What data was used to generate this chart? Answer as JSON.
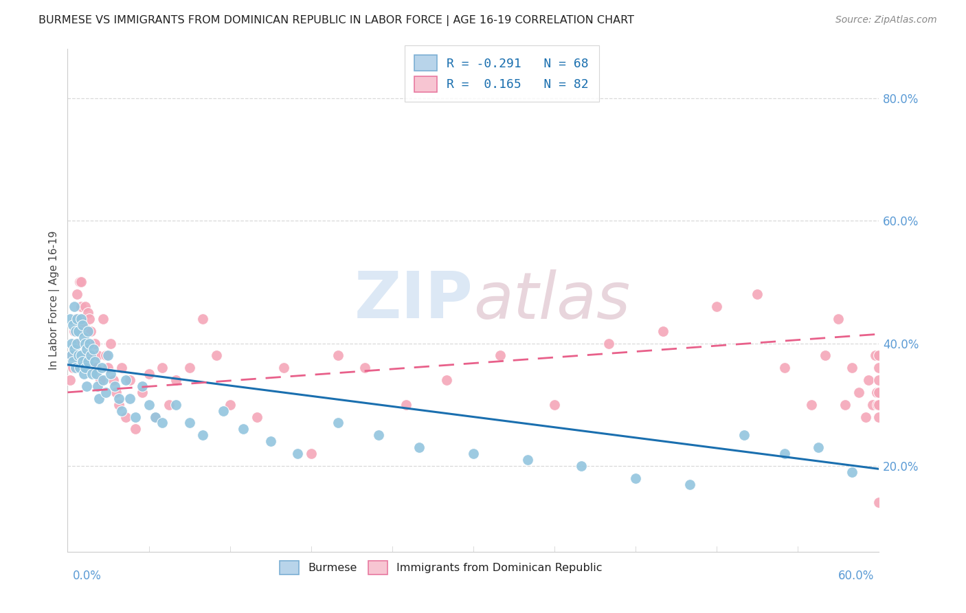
{
  "title": "BURMESE VS IMMIGRANTS FROM DOMINICAN REPUBLIC IN LABOR FORCE | AGE 16-19 CORRELATION CHART",
  "source": "Source: ZipAtlas.com",
  "ylabel": "In Labor Force | Age 16-19",
  "right_yticks": [
    "80.0%",
    "60.0%",
    "40.0%",
    "20.0%"
  ],
  "right_ytick_vals": [
    0.8,
    0.6,
    0.4,
    0.2
  ],
  "blue_color": "#92c5de",
  "pink_color": "#f4a6b8",
  "blue_line_color": "#1a6faf",
  "pink_line_color": "#e8608a",
  "background_color": "#ffffff",
  "grid_color": "#d9d9d9",
  "x_range": [
    0.0,
    0.6
  ],
  "y_range": [
    0.06,
    0.88
  ],
  "blue_scatter_x": [
    0.002,
    0.003,
    0.003,
    0.004,
    0.004,
    0.005,
    0.005,
    0.006,
    0.006,
    0.007,
    0.007,
    0.008,
    0.008,
    0.009,
    0.01,
    0.01,
    0.011,
    0.011,
    0.012,
    0.012,
    0.013,
    0.013,
    0.014,
    0.014,
    0.015,
    0.015,
    0.016,
    0.017,
    0.018,
    0.019,
    0.02,
    0.021,
    0.022,
    0.023,
    0.025,
    0.026,
    0.028,
    0.03,
    0.032,
    0.035,
    0.038,
    0.04,
    0.043,
    0.046,
    0.05,
    0.055,
    0.06,
    0.065,
    0.07,
    0.08,
    0.09,
    0.1,
    0.115,
    0.13,
    0.15,
    0.17,
    0.2,
    0.23,
    0.26,
    0.3,
    0.34,
    0.38,
    0.42,
    0.46,
    0.5,
    0.53,
    0.555,
    0.58
  ],
  "blue_scatter_y": [
    0.44,
    0.4,
    0.38,
    0.43,
    0.37,
    0.46,
    0.39,
    0.42,
    0.36,
    0.44,
    0.4,
    0.38,
    0.42,
    0.36,
    0.44,
    0.38,
    0.43,
    0.37,
    0.41,
    0.35,
    0.4,
    0.36,
    0.39,
    0.33,
    0.42,
    0.37,
    0.4,
    0.38,
    0.35,
    0.39,
    0.37,
    0.35,
    0.33,
    0.31,
    0.36,
    0.34,
    0.32,
    0.38,
    0.35,
    0.33,
    0.31,
    0.29,
    0.34,
    0.31,
    0.28,
    0.33,
    0.3,
    0.28,
    0.27,
    0.3,
    0.27,
    0.25,
    0.29,
    0.26,
    0.24,
    0.22,
    0.27,
    0.25,
    0.23,
    0.22,
    0.21,
    0.2,
    0.18,
    0.17,
    0.25,
    0.22,
    0.23,
    0.19
  ],
  "pink_scatter_x": [
    0.002,
    0.003,
    0.004,
    0.005,
    0.005,
    0.006,
    0.006,
    0.007,
    0.008,
    0.008,
    0.009,
    0.01,
    0.01,
    0.011,
    0.012,
    0.012,
    0.013,
    0.014,
    0.015,
    0.015,
    0.016,
    0.017,
    0.018,
    0.019,
    0.02,
    0.021,
    0.022,
    0.024,
    0.026,
    0.028,
    0.03,
    0.032,
    0.034,
    0.036,
    0.038,
    0.04,
    0.043,
    0.046,
    0.05,
    0.055,
    0.06,
    0.065,
    0.07,
    0.075,
    0.08,
    0.09,
    0.1,
    0.11,
    0.12,
    0.14,
    0.16,
    0.18,
    0.2,
    0.22,
    0.25,
    0.28,
    0.32,
    0.36,
    0.4,
    0.44,
    0.48,
    0.51,
    0.53,
    0.55,
    0.56,
    0.57,
    0.575,
    0.58,
    0.585,
    0.59,
    0.592,
    0.595,
    0.597,
    0.598,
    0.599,
    0.6,
    0.6,
    0.6,
    0.6,
    0.6,
    0.6,
    0.6
  ],
  "pink_scatter_y": [
    0.34,
    0.38,
    0.36,
    0.42,
    0.38,
    0.44,
    0.4,
    0.48,
    0.42,
    0.38,
    0.5,
    0.5,
    0.46,
    0.44,
    0.43,
    0.38,
    0.46,
    0.42,
    0.45,
    0.4,
    0.44,
    0.42,
    0.38,
    0.36,
    0.4,
    0.36,
    0.38,
    0.34,
    0.44,
    0.38,
    0.36,
    0.4,
    0.34,
    0.32,
    0.3,
    0.36,
    0.28,
    0.34,
    0.26,
    0.32,
    0.35,
    0.28,
    0.36,
    0.3,
    0.34,
    0.36,
    0.44,
    0.38,
    0.3,
    0.28,
    0.36,
    0.22,
    0.38,
    0.36,
    0.3,
    0.34,
    0.38,
    0.3,
    0.4,
    0.42,
    0.46,
    0.48,
    0.36,
    0.3,
    0.38,
    0.44,
    0.3,
    0.36,
    0.32,
    0.28,
    0.34,
    0.3,
    0.38,
    0.32,
    0.3,
    0.36,
    0.34,
    0.3,
    0.28,
    0.32,
    0.38,
    0.14
  ],
  "blue_trend_y_start": 0.365,
  "blue_trend_y_end": 0.195,
  "pink_trend_y_start": 0.32,
  "pink_trend_y_end": 0.415
}
